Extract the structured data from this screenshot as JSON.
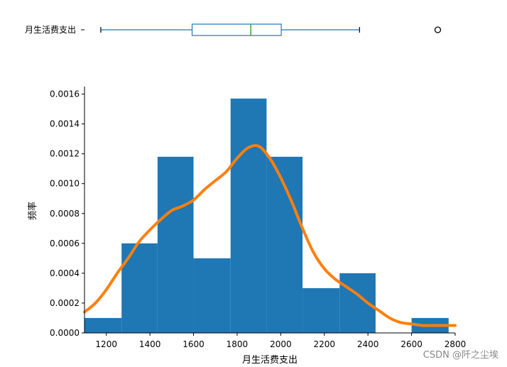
{
  "watermark": "CSDN @阡之尘埃",
  "colors": {
    "bar": "#1f77b4",
    "kde": "#ff7f0e",
    "box": "#1f77b4",
    "median": "#2ca02c"
  },
  "chart_data": [
    {
      "type": "box",
      "ylabel": "月生活费支出",
      "whisker_low": 1170,
      "q1": 1590,
      "median": 1860,
      "q3": 2000,
      "whisker_high": 2360,
      "outliers": [
        2720
      ],
      "xlim": [
        1095,
        2800
      ],
      "grid": false
    },
    {
      "type": "bar",
      "subtype": "histogram_with_kde",
      "xlabel": "月生活费支出",
      "ylabel": "频率",
      "xlim": [
        1100,
        2800
      ],
      "ylim": [
        0,
        0.00165
      ],
      "grid": false,
      "xticks": [
        1200,
        1400,
        1600,
        1800,
        2000,
        2200,
        2400,
        2600,
        2800
      ],
      "yticks": [
        0.0,
        0.0002,
        0.0004,
        0.0006,
        0.0008,
        0.001,
        0.0012,
        0.0014,
        0.0016
      ],
      "ytick_labels": [
        "0.0000",
        "0.0002",
        "0.0004",
        "0.0006",
        "0.0008",
        "0.0010",
        "0.0012",
        "0.0014",
        "0.0016"
      ],
      "bins": [
        {
          "x0": 1100,
          "x1": 1270,
          "value": 0.0001
        },
        {
          "x0": 1270,
          "x1": 1435,
          "value": 0.0006
        },
        {
          "x0": 1435,
          "x1": 1600,
          "value": 0.00118
        },
        {
          "x0": 1600,
          "x1": 1770,
          "value": 0.0005
        },
        {
          "x0": 1770,
          "x1": 1935,
          "value": 0.00157
        },
        {
          "x0": 1935,
          "x1": 2100,
          "value": 0.00118
        },
        {
          "x0": 2100,
          "x1": 2270,
          "value": 0.0003
        },
        {
          "x0": 2270,
          "x1": 2435,
          "value": 0.0004
        },
        {
          "x0": 2435,
          "x1": 2600,
          "value": 0.0
        },
        {
          "x0": 2600,
          "x1": 2770,
          "value": 0.0001
        }
      ],
      "kde": {
        "x": [
          1100,
          1150,
          1200,
          1250,
          1300,
          1350,
          1400,
          1450,
          1500,
          1550,
          1600,
          1650,
          1700,
          1750,
          1800,
          1850,
          1900,
          1950,
          2000,
          2050,
          2100,
          2150,
          2200,
          2250,
          2300,
          2350,
          2400,
          2450,
          2500,
          2550,
          2600,
          2650,
          2700,
          2750,
          2800
        ],
        "y": [
          0.00014,
          0.0002,
          0.00029,
          0.0004,
          0.0005,
          0.00061,
          0.00069,
          0.00076,
          0.00082,
          0.00085,
          0.00089,
          0.00096,
          0.00102,
          0.00108,
          0.00117,
          0.00124,
          0.00125,
          0.00117,
          0.00104,
          0.00088,
          0.0007,
          0.00054,
          0.00043,
          0.00036,
          0.00031,
          0.00026,
          0.0002,
          0.00015,
          0.0001,
          7e-05,
          6e-05,
          5e-05,
          5e-05,
          5e-05,
          5e-05
        ]
      }
    }
  ]
}
